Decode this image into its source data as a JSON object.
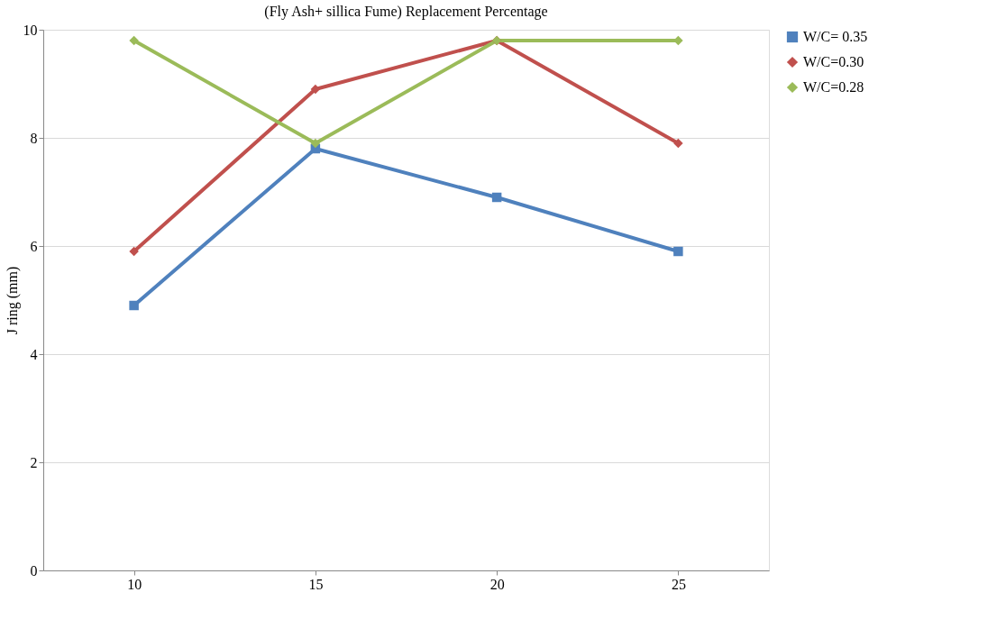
{
  "chart_data": {
    "type": "line",
    "title": "(Fly Ash+ sillica Fume) Replacement Percentage",
    "ylabel": "J ring (mm)",
    "categories": [
      "10",
      "15",
      "20",
      "25"
    ],
    "series": [
      {
        "name": "W/C= 0.35",
        "color": "#4f81bd",
        "marker": "square",
        "values": [
          4.9,
          7.8,
          6.9,
          5.9
        ]
      },
      {
        "name": "W/C=0.30",
        "color": "#c0504d",
        "marker": "diamond",
        "values": [
          5.9,
          8.9,
          9.8,
          7.9
        ]
      },
      {
        "name": "W/C=0.28",
        "color": "#9bbb59",
        "marker": "diamond",
        "values": [
          9.8,
          7.9,
          9.8,
          9.8
        ]
      }
    ],
    "ylim": [
      0,
      10
    ],
    "yticks": [
      0,
      2,
      4,
      6,
      8,
      10
    ],
    "grid": "y",
    "legend": "right",
    "line_style": "solid"
  }
}
